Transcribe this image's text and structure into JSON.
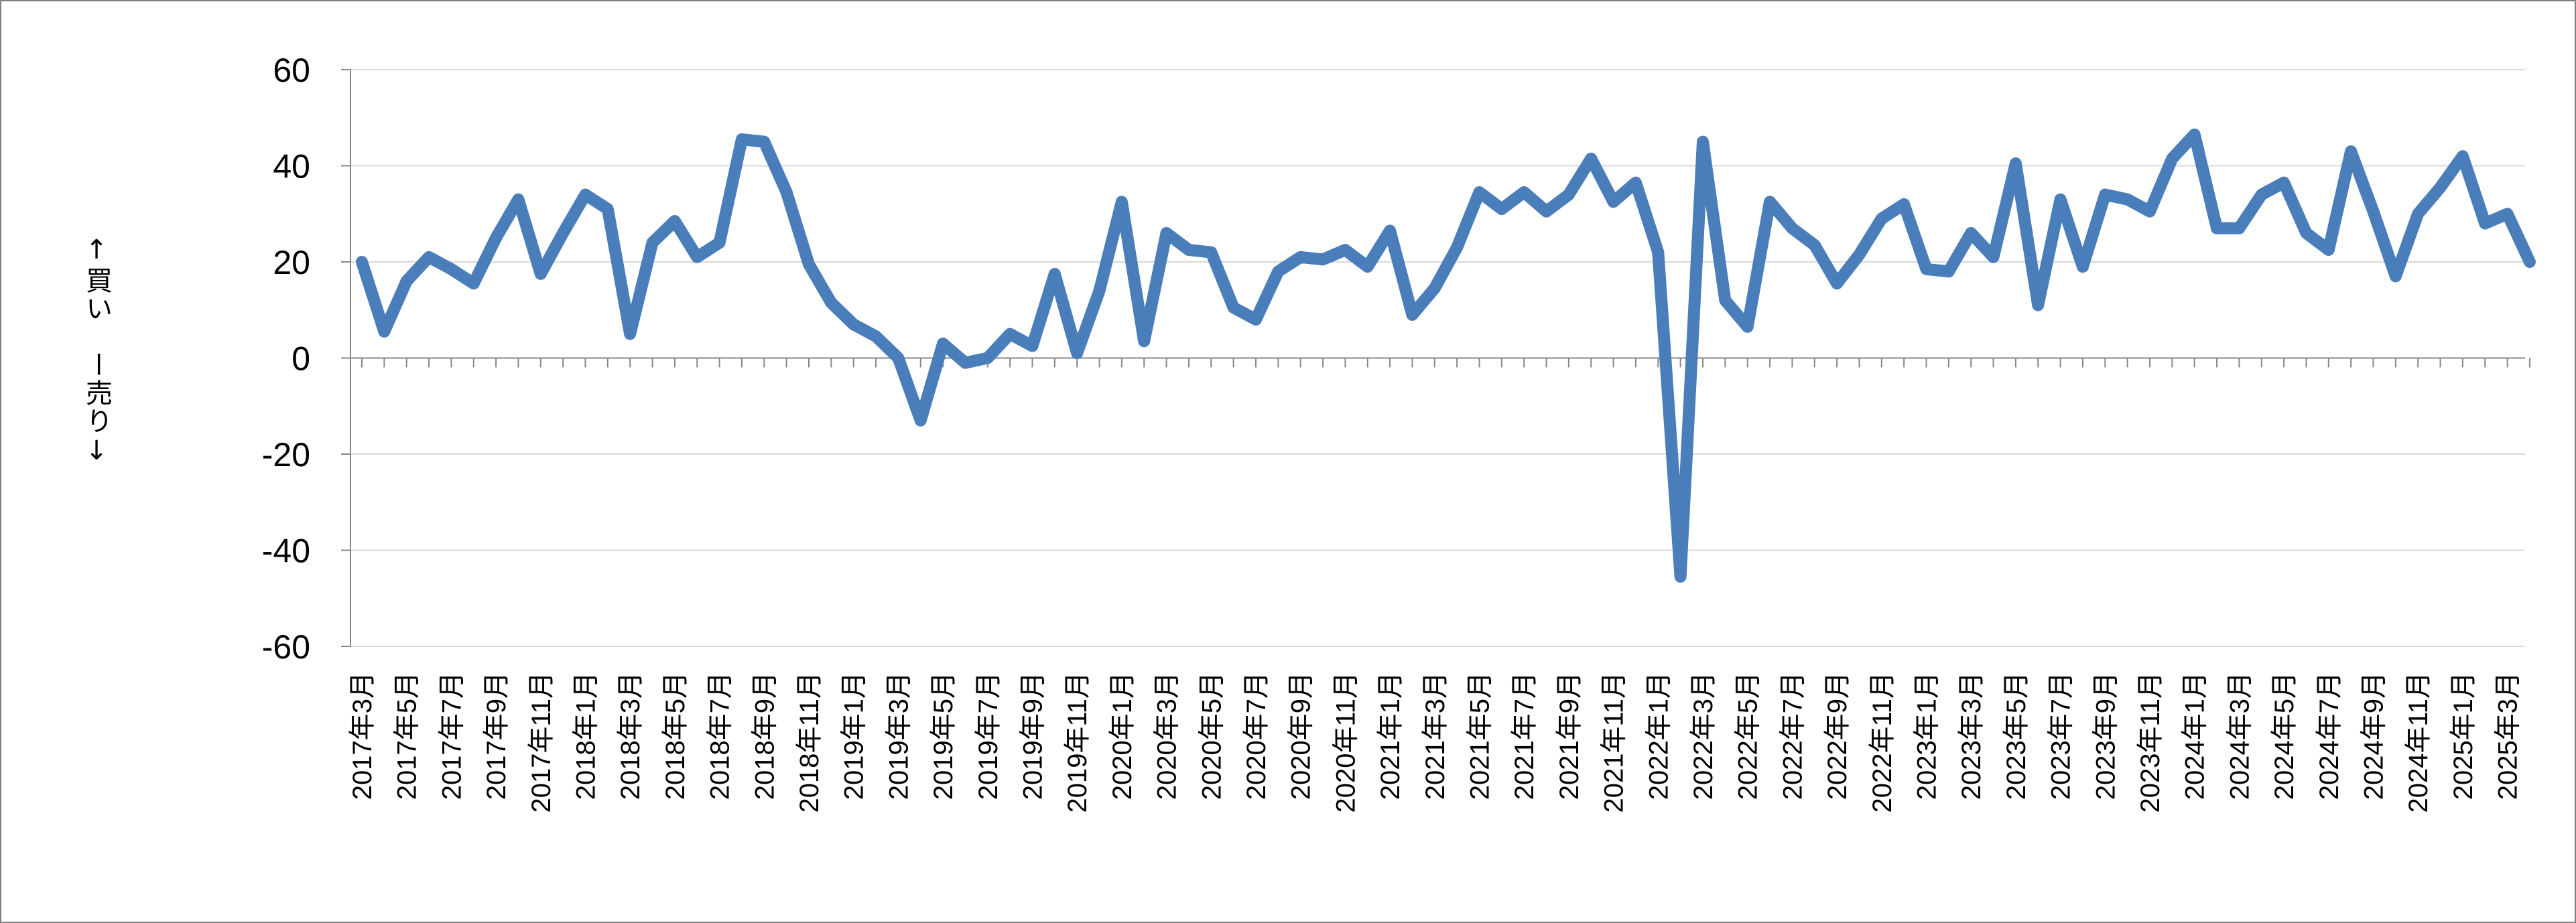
{
  "chart_data": {
    "type": "line",
    "title": "",
    "xlabel": "",
    "ylabel": "↑買い　ー売り↓",
    "ylim": [
      -60,
      60
    ],
    "yticks": [
      60,
      40,
      20,
      0,
      -20,
      -40,
      -60
    ],
    "grid": true,
    "legend": "none",
    "series_color": "#4a7ebb",
    "x": [
      "2017年3月",
      "2017年4月",
      "2017年5月",
      "2017年6月",
      "2017年7月",
      "2017年8月",
      "2017年9月",
      "2017年10月",
      "2017年11月",
      "2017年12月",
      "2018年1月",
      "2018年2月",
      "2018年3月",
      "2018年4月",
      "2018年5月",
      "2018年6月",
      "2018年7月",
      "2018年8月",
      "2018年9月",
      "2018年10月",
      "2018年11月",
      "2018年12月",
      "2019年1月",
      "2019年2月",
      "2019年3月",
      "2019年4月",
      "2019年5月",
      "2019年6月",
      "2019年7月",
      "2019年8月",
      "2019年9月",
      "2019年10月",
      "2019年11月",
      "2019年12月",
      "2020年1月",
      "2020年2月",
      "2020年3月",
      "2020年4月",
      "2020年5月",
      "2020年6月",
      "2020年7月",
      "2020年8月",
      "2020年9月",
      "2020年10月",
      "2020年11月",
      "2020年12月",
      "2021年1月",
      "2021年2月",
      "2021年3月",
      "2021年4月",
      "2021年5月",
      "2021年6月",
      "2021年7月",
      "2021年8月",
      "2021年9月",
      "2021年10月",
      "2021年11月",
      "2021年12月",
      "2022年1月",
      "2022年2月",
      "2022年3月",
      "2022年4月",
      "2022年5月",
      "2022年6月",
      "2022年7月",
      "2022年8月",
      "2022年9月",
      "2022年10月",
      "2022年11月",
      "2022年12月",
      "2023年1月",
      "2023年2月",
      "2023年3月",
      "2023年4月",
      "2023年5月",
      "2023年6月",
      "2023年7月",
      "2023年8月",
      "2023年9月",
      "2023年10月",
      "2023年11月",
      "2023年12月",
      "2024年1月",
      "2024年2月",
      "2024年3月",
      "2024年4月",
      "2024年5月",
      "2024年6月",
      "2024年7月",
      "2024年8月",
      "2024年9月",
      "2024年10月",
      "2024年11月",
      "2024年12月",
      "2025年1月",
      "2025年2月",
      "2025年3月",
      "2025年4月"
    ],
    "tick_labels": [
      "2017年3月",
      "2017年5月",
      "2017年7月",
      "2017年9月",
      "2017年11月",
      "2018年1月",
      "2018年3月",
      "2018年5月",
      "2018年7月",
      "2018年9月",
      "2018年11月",
      "2019年1月",
      "2019年3月",
      "2019年5月",
      "2019年7月",
      "2019年9月",
      "2019年11月",
      "2020年1月",
      "2020年3月",
      "2020年5月",
      "2020年7月",
      "2020年9月",
      "2020年11月",
      "2021年1月",
      "2021年3月",
      "2021年5月",
      "2021年7月",
      "2021年9月",
      "2021年11月",
      "2022年1月",
      "2022年3月",
      "2022年5月",
      "2022年7月",
      "2022年9月",
      "2022年11月",
      "2023年1月",
      "2023年3月",
      "2023年5月",
      "2023年7月",
      "2023年9月",
      "2023年11月",
      "2024年1月",
      "2024年3月",
      "2024年5月",
      "2024年7月",
      "2024年9月",
      "2024年11月",
      "2025年1月",
      "2025年3月"
    ],
    "values": [
      20,
      5.5,
      16,
      21,
      18.5,
      15.5,
      25,
      33,
      17.5,
      26,
      34,
      31,
      5,
      24,
      28.5,
      21,
      24,
      45.5,
      45,
      34.5,
      19.5,
      11.5,
      7,
      4.5,
      0,
      -13,
      3,
      -1,
      0,
      5,
      2.5,
      17.5,
      1,
      14,
      32.5,
      3.5,
      26,
      22.5,
      22,
      10.5,
      8,
      18,
      21,
      20.5,
      22.5,
      19,
      26.5,
      9,
      14.5,
      23,
      34.5,
      31,
      34.5,
      30.5,
      34,
      41.5,
      32.5,
      36.5,
      22,
      -45.5,
      45,
      12,
      6.5,
      32.5,
      27,
      23.5,
      15.5,
      21.5,
      29,
      32,
      18.5,
      18,
      26,
      21,
      40.5,
      11,
      33,
      19,
      34,
      33,
      30.5,
      41.5,
      46.5,
      27,
      27,
      34,
      36.5,
      26,
      22.5,
      43,
      30.5,
      17,
      30,
      35.5,
      42,
      28,
      30,
      20
    ]
  }
}
